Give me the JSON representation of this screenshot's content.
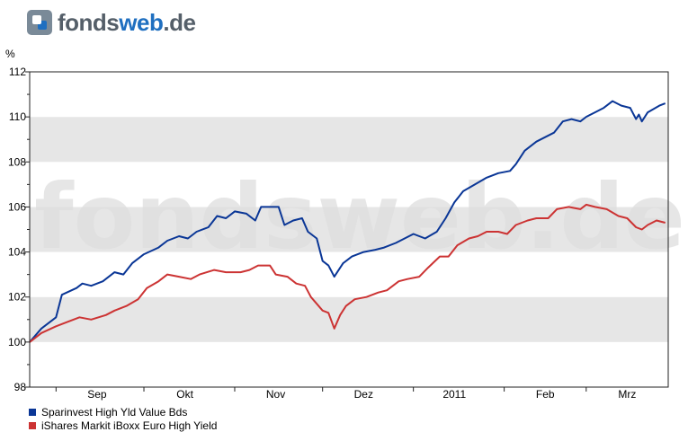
{
  "logo": {
    "brand": "fonds",
    "accent": "web",
    "suffix": ".de"
  },
  "watermark": "fondsweb.de",
  "chart_data": {
    "type": "line",
    "y_unit": "%",
    "ylim": [
      98,
      112
    ],
    "yticks": [
      98,
      100,
      102,
      104,
      106,
      108,
      110,
      112
    ],
    "xlim": [
      "2010-08-23",
      "2011-03-29"
    ],
    "x_labels": [
      {
        "label": "Sep",
        "date": "2010-09-15"
      },
      {
        "label": "Okt",
        "date": "2010-10-15"
      },
      {
        "label": "Nov",
        "date": "2010-11-15"
      },
      {
        "label": "Dez",
        "date": "2010-12-15"
      },
      {
        "label": "2011",
        "date": "2011-01-15"
      },
      {
        "label": "Feb",
        "date": "2011-02-15"
      },
      {
        "label": "Mrz",
        "date": "2011-03-15"
      }
    ],
    "x_separators": [
      "2010-09-01",
      "2010-10-01",
      "2010-11-01",
      "2010-12-01",
      "2011-01-01",
      "2011-02-01",
      "2011-03-01"
    ],
    "grid": true,
    "series": [
      {
        "name": "Sparinvest High Yld Value Bds",
        "color": "#0a3696",
        "points": [
          [
            "2010-08-23",
            100.0
          ],
          [
            "2010-08-27",
            100.6
          ],
          [
            "2010-09-01",
            101.1
          ],
          [
            "2010-09-03",
            102.1
          ],
          [
            "2010-09-08",
            102.4
          ],
          [
            "2010-09-10",
            102.6
          ],
          [
            "2010-09-13",
            102.5
          ],
          [
            "2010-09-17",
            102.7
          ],
          [
            "2010-09-21",
            103.1
          ],
          [
            "2010-09-24",
            103.0
          ],
          [
            "2010-09-27",
            103.5
          ],
          [
            "2010-10-01",
            103.9
          ],
          [
            "2010-10-06",
            104.2
          ],
          [
            "2010-10-09",
            104.5
          ],
          [
            "2010-10-13",
            104.7
          ],
          [
            "2010-10-16",
            104.6
          ],
          [
            "2010-10-19",
            104.9
          ],
          [
            "2010-10-23",
            105.1
          ],
          [
            "2010-10-26",
            105.6
          ],
          [
            "2010-10-29",
            105.5
          ],
          [
            "2010-11-01",
            105.8
          ],
          [
            "2010-11-05",
            105.7
          ],
          [
            "2010-11-08",
            105.4
          ],
          [
            "2010-11-10",
            106.0
          ],
          [
            "2010-11-16",
            106.0
          ],
          [
            "2010-11-18",
            105.2
          ],
          [
            "2010-11-21",
            105.4
          ],
          [
            "2010-11-24",
            105.5
          ],
          [
            "2010-11-26",
            104.9
          ],
          [
            "2010-11-29",
            104.6
          ],
          [
            "2010-12-01",
            103.6
          ],
          [
            "2010-12-03",
            103.4
          ],
          [
            "2010-12-05",
            102.9
          ],
          [
            "2010-12-08",
            103.5
          ],
          [
            "2010-12-11",
            103.8
          ],
          [
            "2010-12-15",
            104.0
          ],
          [
            "2010-12-19",
            104.1
          ],
          [
            "2010-12-22",
            104.2
          ],
          [
            "2010-12-26",
            104.4
          ],
          [
            "2010-12-29",
            104.6
          ],
          [
            "2011-01-01",
            104.8
          ],
          [
            "2011-01-05",
            104.6
          ],
          [
            "2011-01-09",
            104.9
          ],
          [
            "2011-01-12",
            105.5
          ],
          [
            "2011-01-15",
            106.2
          ],
          [
            "2011-01-18",
            106.7
          ],
          [
            "2011-01-22",
            107.0
          ],
          [
            "2011-01-26",
            107.3
          ],
          [
            "2011-01-30",
            107.5
          ],
          [
            "2011-02-03",
            107.6
          ],
          [
            "2011-02-05",
            107.9
          ],
          [
            "2011-02-08",
            108.5
          ],
          [
            "2011-02-12",
            108.9
          ],
          [
            "2011-02-15",
            109.1
          ],
          [
            "2011-02-18",
            109.3
          ],
          [
            "2011-02-21",
            109.8
          ],
          [
            "2011-02-24",
            109.9
          ],
          [
            "2011-02-27",
            109.8
          ],
          [
            "2011-03-01",
            110.0
          ],
          [
            "2011-03-04",
            110.2
          ],
          [
            "2011-03-07",
            110.4
          ],
          [
            "2011-03-10",
            110.7
          ],
          [
            "2011-03-13",
            110.5
          ],
          [
            "2011-03-16",
            110.4
          ],
          [
            "2011-03-18",
            109.9
          ],
          [
            "2011-03-19",
            110.1
          ],
          [
            "2011-03-20",
            109.8
          ],
          [
            "2011-03-22",
            110.2
          ],
          [
            "2011-03-26",
            110.5
          ],
          [
            "2011-03-28",
            110.6
          ]
        ]
      },
      {
        "name": "iShares Markit iBoxx Euro High Yield",
        "color": "#cc3333",
        "points": [
          [
            "2010-08-23",
            100.0
          ],
          [
            "2010-08-27",
            100.4
          ],
          [
            "2010-09-01",
            100.7
          ],
          [
            "2010-09-05",
            100.9
          ],
          [
            "2010-09-09",
            101.1
          ],
          [
            "2010-09-13",
            101.0
          ],
          [
            "2010-09-18",
            101.2
          ],
          [
            "2010-09-21",
            101.4
          ],
          [
            "2010-09-25",
            101.6
          ],
          [
            "2010-09-29",
            101.9
          ],
          [
            "2010-10-02",
            102.4
          ],
          [
            "2010-10-06",
            102.7
          ],
          [
            "2010-10-09",
            103.0
          ],
          [
            "2010-10-13",
            102.9
          ],
          [
            "2010-10-17",
            102.8
          ],
          [
            "2010-10-20",
            103.0
          ],
          [
            "2010-10-25",
            103.2
          ],
          [
            "2010-10-29",
            103.1
          ],
          [
            "2010-11-03",
            103.1
          ],
          [
            "2010-11-06",
            103.2
          ],
          [
            "2010-11-09",
            103.4
          ],
          [
            "2010-11-13",
            103.4
          ],
          [
            "2010-11-15",
            103.0
          ],
          [
            "2010-11-19",
            102.9
          ],
          [
            "2010-11-22",
            102.6
          ],
          [
            "2010-11-25",
            102.5
          ],
          [
            "2010-11-27",
            102.0
          ],
          [
            "2010-12-01",
            101.4
          ],
          [
            "2010-12-03",
            101.3
          ],
          [
            "2010-12-05",
            100.6
          ],
          [
            "2010-12-07",
            101.2
          ],
          [
            "2010-12-09",
            101.6
          ],
          [
            "2010-12-12",
            101.9
          ],
          [
            "2010-12-16",
            102.0
          ],
          [
            "2010-12-20",
            102.2
          ],
          [
            "2010-12-23",
            102.3
          ],
          [
            "2010-12-27",
            102.7
          ],
          [
            "2010-12-30",
            102.8
          ],
          [
            "2011-01-03",
            102.9
          ],
          [
            "2011-01-06",
            103.3
          ],
          [
            "2011-01-10",
            103.8
          ],
          [
            "2011-01-13",
            103.8
          ],
          [
            "2011-01-16",
            104.3
          ],
          [
            "2011-01-20",
            104.6
          ],
          [
            "2011-01-23",
            104.7
          ],
          [
            "2011-01-26",
            104.9
          ],
          [
            "2011-01-30",
            104.9
          ],
          [
            "2011-02-02",
            104.8
          ],
          [
            "2011-02-05",
            105.2
          ],
          [
            "2011-02-09",
            105.4
          ],
          [
            "2011-02-12",
            105.5
          ],
          [
            "2011-02-16",
            105.5
          ],
          [
            "2011-02-19",
            105.9
          ],
          [
            "2011-02-23",
            106.0
          ],
          [
            "2011-02-27",
            105.9
          ],
          [
            "2011-03-01",
            106.1
          ],
          [
            "2011-03-04",
            106.0
          ],
          [
            "2011-03-08",
            105.9
          ],
          [
            "2011-03-12",
            105.6
          ],
          [
            "2011-03-15",
            105.5
          ],
          [
            "2011-03-18",
            105.1
          ],
          [
            "2011-03-20",
            105.0
          ],
          [
            "2011-03-22",
            105.2
          ],
          [
            "2011-03-25",
            105.4
          ],
          [
            "2011-03-28",
            105.3
          ]
        ]
      }
    ]
  }
}
